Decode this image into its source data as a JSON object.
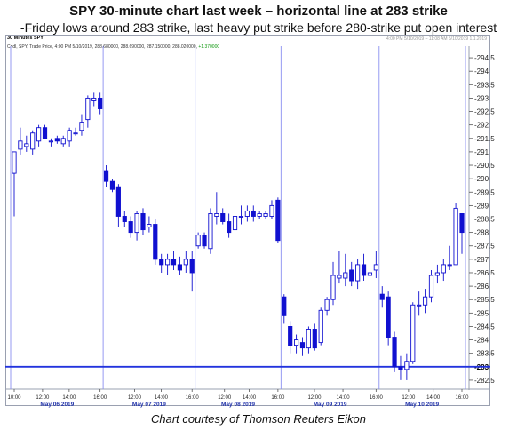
{
  "title": "SPY 30-minute chart last week – horizontal line at 283 strike",
  "subtitle": "-Friday lows around 283 strike, last heavy put strike before 280-strike put open interest",
  "caption": "Chart courtesy of Thomson Reuters Eikon",
  "header": {
    "interval": "30 Minutes SPY",
    "timestamp": "4:00 PM 5/10/2019 – 11:08 AM 5/10/2019 1.1.2019",
    "legend_text": "Cndl, SPY, Trade Price, 4:00 PM 5/10/2019, 288.680000, 288.690000, 287.150000, 288.020000,",
    "legend_change": "+1.370000"
  },
  "colors": {
    "candle": "#1010d0",
    "horizontal_line": "#2233dd",
    "day_separator": "#8a8ff0",
    "axis_text": "#222222",
    "date_text": "#2233aa"
  },
  "chart_data": {
    "type": "candlestick",
    "title": "SPY 30-minute chart last week – horizontal line at 283 strike",
    "ylim": [
      282.2,
      294.8
    ],
    "y_ticks": [
      282.5,
      283,
      283.5,
      284,
      284.5,
      285,
      285.5,
      286,
      286.5,
      287,
      287.5,
      288,
      288.5,
      289,
      289.5,
      290,
      290.5,
      291,
      291.5,
      292,
      292.5,
      293,
      293.5,
      294,
      294.5
    ],
    "y_tick_labels": [
      "282.5",
      "283",
      "283.5",
      "284",
      "284.5",
      "285",
      "285.5",
      "286",
      "286.5",
      "287",
      "287.5",
      "288",
      "288.5",
      "289",
      "289.5",
      "290",
      "290.5",
      "291",
      "291.5",
      "292",
      "292.5",
      "293",
      "293.5",
      "294",
      "294.5"
    ],
    "highlight_tick": "283",
    "horizontal_line": 283,
    "x_time_labels": [
      "10:00",
      "12:00",
      "14:00",
      "16:00",
      "12:00",
      "14:00",
      "16:00",
      "12:00",
      "14:00",
      "16:00",
      "12:00",
      "14:00",
      "16:00",
      "12:00",
      "14:00",
      "16:00"
    ],
    "days": [
      {
        "label": "May 06 2019",
        "candles": [
          {
            "o": 290.2,
            "h": 291.0,
            "l": 288.6,
            "c": 291.0
          },
          {
            "o": 291.1,
            "h": 291.9,
            "l": 290.9,
            "c": 291.4
          },
          {
            "o": 291.2,
            "h": 291.6,
            "l": 291.0,
            "c": 291.3
          },
          {
            "o": 291.1,
            "h": 291.8,
            "l": 290.9,
            "c": 291.7
          },
          {
            "o": 291.4,
            "h": 292.0,
            "l": 291.2,
            "c": 291.9
          },
          {
            "o": 291.9,
            "h": 292.0,
            "l": 291.5,
            "c": 291.5
          },
          {
            "o": 291.4,
            "h": 291.5,
            "l": 291.2,
            "c": 291.4
          },
          {
            "o": 291.5,
            "h": 291.6,
            "l": 291.3,
            "c": 291.4
          },
          {
            "o": 291.3,
            "h": 291.6,
            "l": 291.2,
            "c": 291.5
          },
          {
            "o": 291.4,
            "h": 291.9,
            "l": 291.2,
            "c": 291.8
          },
          {
            "o": 291.7,
            "h": 291.9,
            "l": 291.6,
            "c": 291.7
          },
          {
            "o": 291.8,
            "h": 292.4,
            "l": 291.6,
            "c": 292.1
          },
          {
            "o": 292.2,
            "h": 293.1,
            "l": 291.9,
            "c": 293.0
          },
          {
            "o": 292.9,
            "h": 293.2,
            "l": 292.7,
            "c": 293.0
          },
          {
            "o": 293.0,
            "h": 293.2,
            "l": 292.4,
            "c": 292.6
          }
        ]
      },
      {
        "label": "May 07 2019",
        "candles": [
          {
            "o": 290.3,
            "h": 290.5,
            "l": 289.7,
            "c": 289.9
          },
          {
            "o": 289.9,
            "h": 290.0,
            "l": 289.5,
            "c": 289.6
          },
          {
            "o": 289.7,
            "h": 289.8,
            "l": 288.2,
            "c": 288.6
          },
          {
            "o": 288.6,
            "h": 288.8,
            "l": 288.2,
            "c": 288.4
          },
          {
            "o": 288.4,
            "h": 288.6,
            "l": 287.8,
            "c": 288.0
          },
          {
            "o": 288.0,
            "h": 288.8,
            "l": 287.7,
            "c": 288.7
          },
          {
            "o": 288.7,
            "h": 288.9,
            "l": 287.9,
            "c": 288.1
          },
          {
            "o": 288.2,
            "h": 288.6,
            "l": 288.0,
            "c": 288.3
          },
          {
            "o": 288.3,
            "h": 288.5,
            "l": 286.8,
            "c": 287.0
          },
          {
            "o": 287.0,
            "h": 287.2,
            "l": 286.5,
            "c": 286.8
          },
          {
            "o": 286.8,
            "h": 287.2,
            "l": 286.4,
            "c": 287.0
          },
          {
            "o": 287.0,
            "h": 287.3,
            "l": 286.6,
            "c": 286.8
          },
          {
            "o": 286.8,
            "h": 287.1,
            "l": 286.4,
            "c": 286.6
          },
          {
            "o": 286.8,
            "h": 287.3,
            "l": 286.5,
            "c": 287.0
          },
          {
            "o": 287.0,
            "h": 287.3,
            "l": 285.8,
            "c": 286.5
          }
        ]
      },
      {
        "label": "May 08 2019",
        "candles": [
          {
            "o": 287.5,
            "h": 288.0,
            "l": 287.4,
            "c": 287.9
          },
          {
            "o": 287.9,
            "h": 288.0,
            "l": 287.4,
            "c": 287.5
          },
          {
            "o": 287.4,
            "h": 288.9,
            "l": 287.2,
            "c": 288.7
          },
          {
            "o": 288.6,
            "h": 289.5,
            "l": 288.3,
            "c": 288.7
          },
          {
            "o": 288.7,
            "h": 288.9,
            "l": 288.3,
            "c": 288.4
          },
          {
            "o": 288.4,
            "h": 288.7,
            "l": 287.8,
            "c": 288.0
          },
          {
            "o": 288.1,
            "h": 288.7,
            "l": 287.9,
            "c": 288.6
          },
          {
            "o": 288.6,
            "h": 289.0,
            "l": 288.3,
            "c": 288.6
          },
          {
            "o": 288.6,
            "h": 289.0,
            "l": 288.4,
            "c": 288.8
          },
          {
            "o": 288.8,
            "h": 289.0,
            "l": 288.4,
            "c": 288.6
          },
          {
            "o": 288.6,
            "h": 288.8,
            "l": 288.5,
            "c": 288.7
          },
          {
            "o": 288.6,
            "h": 288.8,
            "l": 288.5,
            "c": 288.7
          },
          {
            "o": 288.6,
            "h": 289.2,
            "l": 288.5,
            "c": 289.0
          },
          {
            "o": 289.2,
            "h": 289.3,
            "l": 287.6,
            "c": 287.7
          }
        ]
      },
      {
        "label": "May 09 2019",
        "candles": [
          {
            "o": 285.6,
            "h": 285.7,
            "l": 284.6,
            "c": 284.9
          },
          {
            "o": 284.5,
            "h": 284.7,
            "l": 283.5,
            "c": 283.8
          },
          {
            "o": 283.8,
            "h": 284.2,
            "l": 283.5,
            "c": 284.0
          },
          {
            "o": 283.9,
            "h": 284.1,
            "l": 283.4,
            "c": 283.7
          },
          {
            "o": 283.7,
            "h": 284.5,
            "l": 283.5,
            "c": 284.4
          },
          {
            "o": 284.4,
            "h": 284.6,
            "l": 283.6,
            "c": 283.7
          },
          {
            "o": 283.9,
            "h": 285.2,
            "l": 283.8,
            "c": 285.1
          },
          {
            "o": 285.1,
            "h": 285.6,
            "l": 284.9,
            "c": 285.5
          },
          {
            "o": 285.5,
            "h": 286.9,
            "l": 285.3,
            "c": 286.4
          },
          {
            "o": 286.3,
            "h": 287.3,
            "l": 286.1,
            "c": 286.4
          },
          {
            "o": 286.3,
            "h": 287.2,
            "l": 286.0,
            "c": 286.5
          },
          {
            "o": 286.6,
            "h": 286.9,
            "l": 286.0,
            "c": 286.2
          },
          {
            "o": 286.2,
            "h": 287.0,
            "l": 285.9,
            "c": 286.8
          },
          {
            "o": 286.8,
            "h": 287.2,
            "l": 286.2,
            "c": 286.4
          },
          {
            "o": 286.4,
            "h": 286.9,
            "l": 286.0,
            "c": 286.5
          },
          {
            "o": 286.6,
            "h": 287.3,
            "l": 286.3,
            "c": 286.8
          }
        ]
      },
      {
        "label": "May 10 2019",
        "candles": [
          {
            "o": 285.7,
            "h": 286.0,
            "l": 285.2,
            "c": 285.5
          },
          {
            "o": 285.6,
            "h": 285.8,
            "l": 283.8,
            "c": 284.1
          },
          {
            "o": 284.1,
            "h": 284.3,
            "l": 282.8,
            "c": 283.0
          },
          {
            "o": 283.0,
            "h": 283.4,
            "l": 282.5,
            "c": 282.9
          },
          {
            "o": 282.9,
            "h": 283.5,
            "l": 282.5,
            "c": 283.2
          },
          {
            "o": 283.2,
            "h": 285.4,
            "l": 283.1,
            "c": 285.3
          },
          {
            "o": 285.3,
            "h": 285.8,
            "l": 284.9,
            "c": 285.3
          },
          {
            "o": 285.3,
            "h": 285.9,
            "l": 285.0,
            "c": 285.6
          },
          {
            "o": 285.6,
            "h": 286.6,
            "l": 285.4,
            "c": 286.4
          },
          {
            "o": 286.4,
            "h": 286.8,
            "l": 286.1,
            "c": 286.5
          },
          {
            "o": 286.5,
            "h": 287.0,
            "l": 286.2,
            "c": 286.8
          },
          {
            "o": 286.8,
            "h": 287.5,
            "l": 286.6,
            "c": 286.8
          },
          {
            "o": 286.8,
            "h": 289.1,
            "l": 286.8,
            "c": 288.9
          },
          {
            "o": 288.7,
            "h": 288.7,
            "l": 287.2,
            "c": 288.0
          }
        ]
      }
    ]
  }
}
